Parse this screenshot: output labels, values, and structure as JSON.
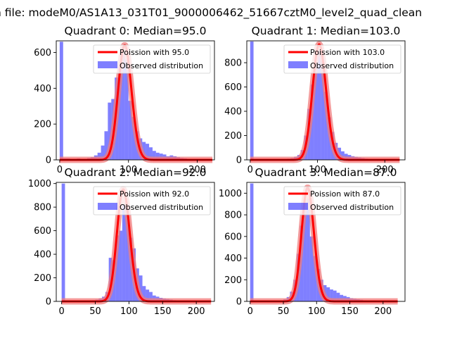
{
  "figure": {
    "suptitle": "n file: modeM0/AS1A13_031T01_9000006462_51667cztM0_level2_quad_clean"
  },
  "colors": {
    "hist": "#0000ff",
    "fit": "#ff0000",
    "fit_alpha_band": "#f07b7b"
  },
  "chart_data": [
    {
      "type": "bar",
      "title": "Quadrant 0: Median=95.0",
      "xlim": [
        -5,
        225
      ],
      "ylim": [
        0,
        665
      ],
      "xticks": [
        0,
        100,
        200
      ],
      "yticks": [
        0,
        200,
        400,
        600
      ],
      "legend": [
        "Poission with 95.0",
        "Observed distribution"
      ],
      "poisson_mean": 95.0,
      "poisson_scale": 640,
      "hist": {
        "edges": [
          0,
          5,
          10,
          15,
          20,
          25,
          30,
          35,
          40,
          45,
          50,
          55,
          60,
          65,
          70,
          75,
          80,
          85,
          90,
          95,
          100,
          105,
          110,
          115,
          120,
          125,
          130,
          135,
          140,
          145,
          150,
          155,
          160,
          165,
          170,
          175,
          180,
          185,
          190,
          195,
          200,
          205,
          210,
          215,
          220
        ],
        "counts": [
          660,
          8,
          8,
          5,
          5,
          8,
          5,
          5,
          10,
          15,
          25,
          40,
          80,
          160,
          320,
          340,
          460,
          520,
          600,
          560,
          330,
          240,
          160,
          120,
          100,
          90,
          70,
          50,
          40,
          35,
          30,
          20,
          25,
          20,
          15,
          10,
          8,
          5,
          5,
          3,
          2,
          2,
          1,
          1
        ]
      }
    },
    {
      "type": "bar",
      "title": "Quadrant 1: Median=103.0",
      "xlim": [
        -5,
        230
      ],
      "ylim": [
        0,
        980
      ],
      "xticks": [
        0,
        100,
        200
      ],
      "yticks": [
        0,
        200,
        400,
        600,
        800
      ],
      "legend": [
        "Poission with 103.0",
        "Observed distribution"
      ],
      "poisson_mean": 103.0,
      "poisson_scale": 950,
      "hist": {
        "edges": [
          0,
          5,
          10,
          15,
          20,
          25,
          30,
          35,
          40,
          45,
          50,
          55,
          60,
          65,
          70,
          75,
          80,
          85,
          90,
          95,
          100,
          105,
          110,
          115,
          120,
          125,
          130,
          135,
          140,
          145,
          150,
          155,
          160,
          165,
          170,
          175,
          180,
          185,
          190,
          195,
          200,
          205,
          210,
          215,
          220,
          225
        ],
        "counts": [
          975,
          5,
          5,
          5,
          5,
          5,
          5,
          5,
          5,
          5,
          8,
          10,
          15,
          25,
          40,
          80,
          200,
          420,
          620,
          800,
          900,
          820,
          560,
          350,
          230,
          140,
          100,
          70,
          50,
          40,
          30,
          25,
          20,
          15,
          10,
          8,
          5,
          5,
          3,
          3,
          2,
          2,
          1,
          1,
          1
        ]
      }
    },
    {
      "type": "bar",
      "title": "Quadrant 2: Median=92.0",
      "xlim": [
        -8,
        227
      ],
      "ylim": [
        0,
        1010
      ],
      "xticks": [
        0,
        50,
        100,
        150,
        200
      ],
      "yticks": [
        0,
        200,
        400,
        600,
        800,
        1000
      ],
      "legend": [
        "Poission with 92.0",
        "Observed distribution"
      ],
      "poisson_mean": 92.0,
      "poisson_scale": 950,
      "hist": {
        "edges": [
          0,
          5,
          10,
          15,
          20,
          25,
          30,
          35,
          40,
          45,
          50,
          55,
          60,
          65,
          70,
          75,
          80,
          85,
          90,
          95,
          100,
          105,
          110,
          115,
          120,
          125,
          130,
          135,
          140,
          145,
          150,
          155,
          160,
          165,
          170,
          175,
          180,
          185,
          190,
          195,
          200,
          205,
          210,
          215,
          220
        ],
        "counts": [
          1000,
          5,
          5,
          5,
          5,
          5,
          5,
          5,
          5,
          10,
          15,
          25,
          40,
          80,
          370,
          350,
          560,
          600,
          820,
          830,
          540,
          450,
          280,
          220,
          130,
          100,
          80,
          50,
          40,
          30,
          25,
          20,
          15,
          10,
          8,
          5,
          5,
          3,
          3,
          2,
          2,
          1,
          1,
          1
        ]
      }
    },
    {
      "type": "bar",
      "title": "Quadrant 3: Median=87.0",
      "xlim": [
        -5,
        233
      ],
      "ylim": [
        0,
        1100
      ],
      "xticks": [
        0,
        50,
        100,
        150,
        200
      ],
      "yticks": [
        0,
        200,
        400,
        600,
        800,
        1000
      ],
      "legend": [
        "Poission with 87.0",
        "Observed distribution"
      ],
      "poisson_mean": 87.0,
      "poisson_scale": 1050,
      "hist": {
        "edges": [
          0,
          5,
          10,
          15,
          20,
          25,
          30,
          35,
          40,
          45,
          50,
          55,
          60,
          65,
          70,
          75,
          80,
          85,
          90,
          95,
          100,
          105,
          110,
          115,
          120,
          125,
          130,
          135,
          140,
          145,
          150,
          155,
          160,
          165,
          170,
          175,
          180,
          185,
          190,
          195,
          200,
          205,
          210,
          215,
          220
        ],
        "counts": [
          1090,
          5,
          5,
          5,
          5,
          5,
          5,
          5,
          8,
          10,
          20,
          40,
          90,
          200,
          440,
          700,
          900,
          950,
          600,
          420,
          300,
          200,
          150,
          130,
          110,
          100,
          80,
          60,
          50,
          40,
          30,
          25,
          20,
          15,
          10,
          8,
          5,
          5,
          3,
          2,
          2,
          1,
          1,
          1
        ]
      }
    }
  ]
}
